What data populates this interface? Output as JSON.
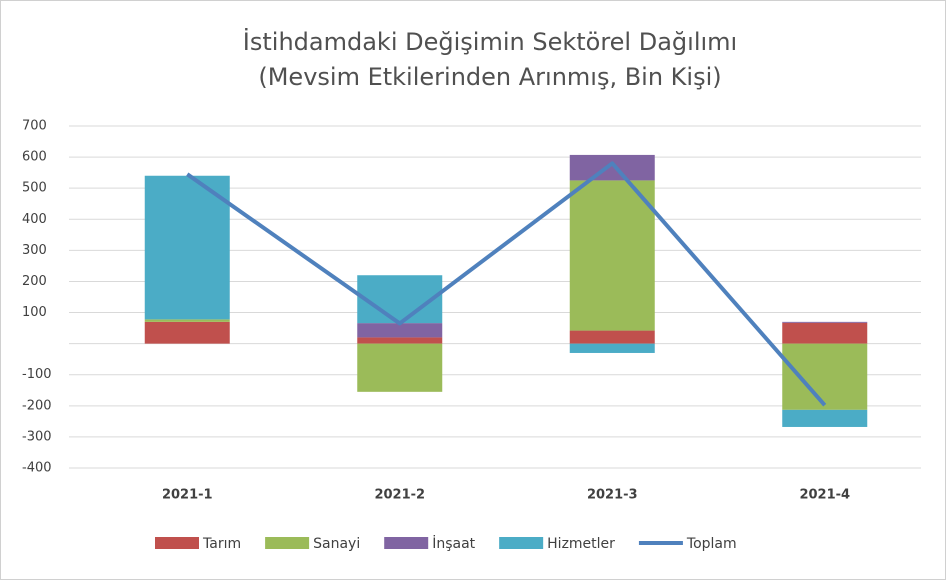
{
  "chart_data": {
    "type": "stacked-bar-line",
    "title": "İstihdamdaki Değişimin Sektörel Dağılımı",
    "subtitle": "(Mevsim Etkilerinden Arınmış, Bin Kişi)",
    "categories": [
      "2021-1",
      "2021-2",
      "2021-3",
      "2021-4"
    ],
    "series": [
      {
        "name": "Tarım",
        "color": "#c0504d",
        "values": [
          70,
          20,
          42,
          67
        ]
      },
      {
        "name": "Sanayi",
        "color": "#9bbb59",
        "values": [
          8,
          -155,
          483,
          -213
        ]
      },
      {
        "name": "İnşaat",
        "color": "#8064a2",
        "values": [
          0,
          46,
          82,
          3
        ]
      },
      {
        "name": "Hizmetler",
        "color": "#4bacc6",
        "values": [
          462,
          154,
          -30,
          -55
        ]
      },
      {
        "name": "Toplam",
        "color": "#4f81bd",
        "type": "line",
        "values": [
          545,
          65,
          580,
          -198
        ]
      }
    ],
    "ylim": [
      -400,
      700
    ],
    "yticks": [
      -400,
      -300,
      -200,
      -100,
      100,
      200,
      300,
      400,
      500,
      600,
      700
    ],
    "grid": true,
    "legend": "bottom"
  }
}
